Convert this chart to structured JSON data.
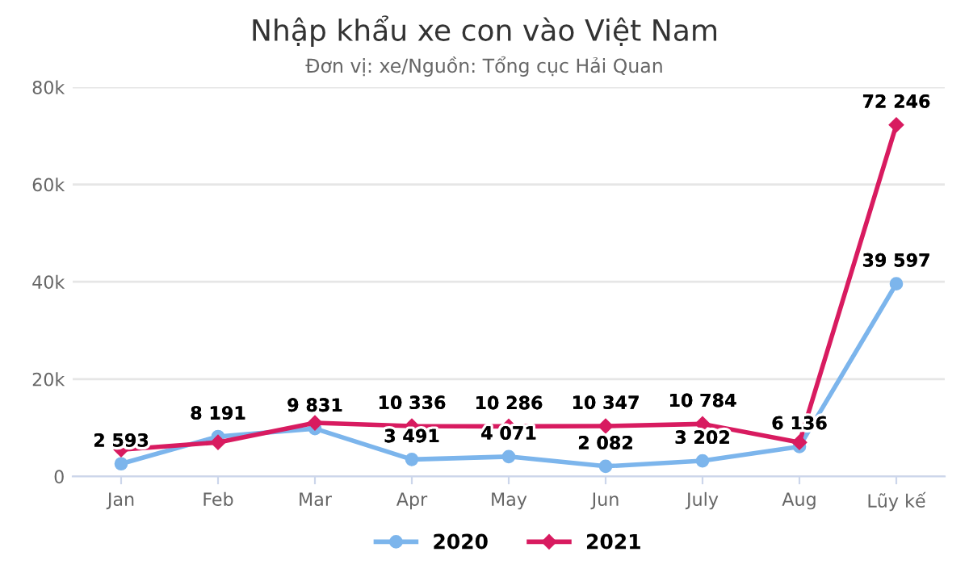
{
  "chart_data": {
    "type": "line",
    "title": "Nhập khẩu xe con vào Việt Nam",
    "subtitle": "Đơn vị: xe/Nguồn: Tổng cục Hải Quan",
    "categories": [
      "Jan",
      "Feb",
      "Mar",
      "Apr",
      "May",
      "Jun",
      "July",
      "Aug",
      "Lũy kế"
    ],
    "series": [
      {
        "name": "2020",
        "color": "#7cb5ec",
        "marker": "circle",
        "values": [
          2593,
          8191,
          9831,
          3491,
          4071,
          2082,
          3202,
          6136,
          39597
        ],
        "value_labels": [
          "2 593",
          "8 191",
          "9 831",
          "3 491",
          "4 071",
          "2 082",
          "3 202",
          "6 136",
          "39 597"
        ]
      },
      {
        "name": "2021",
        "color": "#d81b60",
        "marker": "diamond",
        "values": [
          5500,
          7000,
          11000,
          10336,
          10286,
          10347,
          10784,
          7000,
          72246
        ],
        "value_labels": [
          null,
          null,
          null,
          "10 336",
          "10 286",
          "10 347",
          "10 784",
          null,
          "72 246"
        ]
      }
    ],
    "ylim": [
      0,
      80000
    ],
    "yticks": [
      {
        "value": 0,
        "label": "0"
      },
      {
        "value": 20000,
        "label": "20k"
      },
      {
        "value": 40000,
        "label": "40k"
      },
      {
        "value": 60000,
        "label": "60k"
      },
      {
        "value": 80000,
        "label": "80k"
      }
    ],
    "grid": "y",
    "legend": "bottom"
  }
}
